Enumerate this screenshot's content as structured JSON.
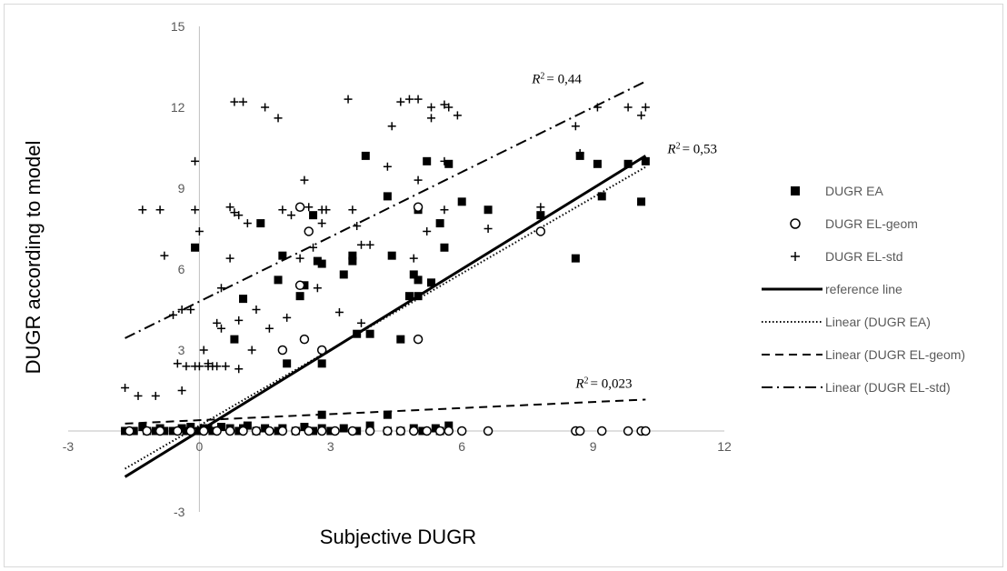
{
  "chart_data": {
    "type": "scatter",
    "title": "",
    "xlabel": "Subjective DUGR",
    "ylabel": "DUGR according to model",
    "xlim": [
      -3,
      12
    ],
    "ylim": [
      -3,
      15
    ],
    "x_ticks": [
      "-3",
      "0",
      "3",
      "6",
      "9",
      "12"
    ],
    "y_ticks": [
      "-3",
      "0",
      "3",
      "6",
      "9",
      "12",
      "15"
    ],
    "grid": false,
    "legend_position": "right",
    "series": [
      {
        "name": "DUGR EA",
        "marker": "filled-square",
        "color": "#000000",
        "points": [
          [
            -1.7,
            0
          ],
          [
            -1.5,
            0
          ],
          [
            -1.3,
            0.15
          ],
          [
            -1.2,
            0
          ],
          [
            -1,
            0
          ],
          [
            -0.8,
            0
          ],
          [
            -0.9,
            0.1
          ],
          [
            -0.6,
            0
          ],
          [
            -0.4,
            0.1
          ],
          [
            -0.3,
            0
          ],
          [
            -0.2,
            0.15
          ],
          [
            0,
            0
          ],
          [
            0.1,
            0.1
          ],
          [
            0.3,
            0
          ],
          [
            0.5,
            0.15
          ],
          [
            0.7,
            0.1
          ],
          [
            0.9,
            0
          ],
          [
            1.0,
            0.1
          ],
          [
            1.1,
            0.2
          ],
          [
            1.3,
            0
          ],
          [
            1.5,
            0.1
          ],
          [
            1.8,
            0
          ],
          [
            1.9,
            0.1
          ],
          [
            2.2,
            0
          ],
          [
            2.4,
            0.15
          ],
          [
            2.6,
            0
          ],
          [
            2.8,
            0.1
          ],
          [
            2.8,
            0.6
          ],
          [
            3.0,
            0
          ],
          [
            3.3,
            0.1
          ],
          [
            3.6,
            0
          ],
          [
            3.9,
            0.2
          ],
          [
            4.3,
            0
          ],
          [
            4.3,
            0.6
          ],
          [
            4.6,
            0
          ],
          [
            4.9,
            0.1
          ],
          [
            5.1,
            0
          ],
          [
            5.4,
            0.1
          ],
          [
            5.7,
            0.2
          ],
          [
            5.5,
            0
          ],
          [
            -0.1,
            6.8
          ],
          [
            0.2,
            0.1
          ],
          [
            0.8,
            3.4
          ],
          [
            1.0,
            4.9
          ],
          [
            1.4,
            7.7
          ],
          [
            1.8,
            5.6
          ],
          [
            2.0,
            2.5
          ],
          [
            1.9,
            6.5
          ],
          [
            2.3,
            5.0
          ],
          [
            2.4,
            5.4
          ],
          [
            2.6,
            8.0
          ],
          [
            2.7,
            6.3
          ],
          [
            2.8,
            6.2
          ],
          [
            2.8,
            2.5
          ],
          [
            3.3,
            5.8
          ],
          [
            3.5,
            6.3
          ],
          [
            3.5,
            6.5
          ],
          [
            3.6,
            3.6
          ],
          [
            3.8,
            10.2
          ],
          [
            3.9,
            3.6
          ],
          [
            4.3,
            8.7
          ],
          [
            4.4,
            6.5
          ],
          [
            4.6,
            3.4
          ],
          [
            4.8,
            5.0
          ],
          [
            4.9,
            5.8
          ],
          [
            5.0,
            5.6
          ],
          [
            5.0,
            5.0
          ],
          [
            5.0,
            8.2
          ],
          [
            5.2,
            10.0
          ],
          [
            5.3,
            5.5
          ],
          [
            5.5,
            7.7
          ],
          [
            5.6,
            6.8
          ],
          [
            5.7,
            9.9
          ],
          [
            6.0,
            8.5
          ],
          [
            6.6,
            8.2
          ],
          [
            7.8,
            8.0
          ],
          [
            8.6,
            6.4
          ],
          [
            8.7,
            10.2
          ],
          [
            9.1,
            9.9
          ],
          [
            9.2,
            8.7
          ],
          [
            9.8,
            9.9
          ],
          [
            10.1,
            8.5
          ],
          [
            10.2,
            10.0
          ]
        ]
      },
      {
        "name": "DUGR EL-geom",
        "marker": "open-circle",
        "color": "#000000",
        "points": [
          [
            -1.6,
            0
          ],
          [
            -1.2,
            0
          ],
          [
            -0.9,
            0
          ],
          [
            -0.5,
            0
          ],
          [
            -0.2,
            0
          ],
          [
            0.1,
            0
          ],
          [
            0.4,
            0
          ],
          [
            0.7,
            0
          ],
          [
            1.0,
            0
          ],
          [
            1.3,
            0
          ],
          [
            1.6,
            0
          ],
          [
            1.9,
            0
          ],
          [
            2.2,
            0
          ],
          [
            2.5,
            0
          ],
          [
            2.8,
            0
          ],
          [
            3.1,
            0
          ],
          [
            3.5,
            0
          ],
          [
            3.9,
            0
          ],
          [
            4.3,
            0
          ],
          [
            4.6,
            0
          ],
          [
            4.9,
            0
          ],
          [
            5.2,
            0
          ],
          [
            5.5,
            0
          ],
          [
            5.7,
            0
          ],
          [
            6.0,
            0
          ],
          [
            6.6,
            0
          ],
          [
            8.6,
            0
          ],
          [
            8.7,
            0
          ],
          [
            9.2,
            0
          ],
          [
            9.8,
            0
          ],
          [
            10.1,
            0
          ],
          [
            10.2,
            0
          ],
          [
            1.9,
            3.0
          ],
          [
            2.3,
            8.3
          ],
          [
            2.4,
            3.4
          ],
          [
            2.5,
            7.4
          ],
          [
            2.8,
            3.0
          ],
          [
            5.0,
            3.4
          ],
          [
            5.0,
            8.3
          ],
          [
            2.3,
            5.4
          ],
          [
            7.8,
            7.4
          ]
        ]
      },
      {
        "name": "DUGR EL-std",
        "marker": "plus",
        "color": "#000000",
        "points": [
          [
            -1.7,
            1.6
          ],
          [
            -1.4,
            1.3
          ],
          [
            -1.3,
            8.2
          ],
          [
            -1.0,
            1.3
          ],
          [
            -0.9,
            8.2
          ],
          [
            -0.8,
            6.5
          ],
          [
            -0.6,
            4.3
          ],
          [
            -0.4,
            4.5
          ],
          [
            -0.4,
            1.5
          ],
          [
            -0.5,
            2.5
          ],
          [
            -0.2,
            4.5
          ],
          [
            -0.1,
            8.2
          ],
          [
            -0.1,
            10.0
          ],
          [
            0,
            7.4
          ],
          [
            0.1,
            3.0
          ],
          [
            0.2,
            2.5
          ],
          [
            0.3,
            2.4
          ],
          [
            0.4,
            4.0
          ],
          [
            0.5,
            3.8
          ],
          [
            0.5,
            5.3
          ],
          [
            0.7,
            6.4
          ],
          [
            0.7,
            8.3
          ],
          [
            0.8,
            8.1
          ],
          [
            0.8,
            12.2
          ],
          [
            0.9,
            4.1
          ],
          [
            1.0,
            12.2
          ],
          [
            1.1,
            7.7
          ],
          [
            1.2,
            3.0
          ],
          [
            1.3,
            4.5
          ],
          [
            1.5,
            12.0
          ],
          [
            1.6,
            3.8
          ],
          [
            1.8,
            11.6
          ],
          [
            1.9,
            8.2
          ],
          [
            2.0,
            4.2
          ],
          [
            2.1,
            8.0
          ],
          [
            2.3,
            6.4
          ],
          [
            2.4,
            9.3
          ],
          [
            2.5,
            8.3
          ],
          [
            2.6,
            6.8
          ],
          [
            2.7,
            5.3
          ],
          [
            2.8,
            8.2
          ],
          [
            2.9,
            8.2
          ],
          [
            2.8,
            7.7
          ],
          [
            3.2,
            4.4
          ],
          [
            3.4,
            12.3
          ],
          [
            3.5,
            8.2
          ],
          [
            3.6,
            7.6
          ],
          [
            3.7,
            4.0
          ],
          [
            3.7,
            6.9
          ],
          [
            3.9,
            6.9
          ],
          [
            4.3,
            9.8
          ],
          [
            4.4,
            11.3
          ],
          [
            4.6,
            12.2
          ],
          [
            4.8,
            12.3
          ],
          [
            5.0,
            12.3
          ],
          [
            5.0,
            9.3
          ],
          [
            4.9,
            6.4
          ],
          [
            5.2,
            7.4
          ],
          [
            5.3,
            11.6
          ],
          [
            5.3,
            12.0
          ],
          [
            5.6,
            12.1
          ],
          [
            5.6,
            8.2
          ],
          [
            5.7,
            12.0
          ],
          [
            5.9,
            11.7
          ],
          [
            5.6,
            10.0
          ],
          [
            6.6,
            7.5
          ],
          [
            7.8,
            8.3
          ],
          [
            8.6,
            11.3
          ],
          [
            8.7,
            10.3
          ],
          [
            9.1,
            12.0
          ],
          [
            9.8,
            12.0
          ],
          [
            10.1,
            11.7
          ],
          [
            10.2,
            12.0
          ],
          [
            0.2,
            2.4
          ],
          [
            0.4,
            2.4
          ],
          [
            0.6,
            2.4
          ],
          [
            -0.3,
            2.4
          ],
          [
            -0.1,
            2.4
          ],
          [
            0.0,
            2.4
          ],
          [
            0.9,
            2.3
          ],
          [
            0.9,
            8.0
          ]
        ]
      }
    ],
    "lines": [
      {
        "name": "reference line",
        "style": "solid",
        "stroke_weight": "thick",
        "slope": 1.0,
        "intercept": 0.0,
        "x_range": [
          -1.7,
          10.2
        ]
      },
      {
        "name": "Linear (DUGR EA)",
        "style": "dotted",
        "stroke_weight": "normal",
        "slope": 0.94,
        "intercept": 0.2,
        "x_range": [
          -1.7,
          10.2
        ]
      },
      {
        "name": "Linear (DUGR EL-geom)",
        "style": "dashed",
        "stroke_weight": "normal",
        "slope": 0.075,
        "intercept": 0.4,
        "x_range": [
          -1.7,
          10.2
        ]
      },
      {
        "name": "Linear (DUGR EL-std)",
        "style": "dash-dot",
        "stroke_weight": "normal",
        "slope": 0.8,
        "intercept": 4.8,
        "x_range": [
          -1.7,
          10.2
        ]
      }
    ],
    "annotations": [
      {
        "text": "= 0,44",
        "prefix": "R",
        "sup": "2",
        "at": [
          7.6,
          12.9
        ]
      },
      {
        "text": "= 0,53",
        "prefix": "R",
        "sup": "2",
        "at": [
          10.7,
          10.3
        ]
      },
      {
        "text": "= 0,023",
        "prefix": "R",
        "sup": "2",
        "at": [
          8.6,
          1.6
        ]
      }
    ]
  }
}
